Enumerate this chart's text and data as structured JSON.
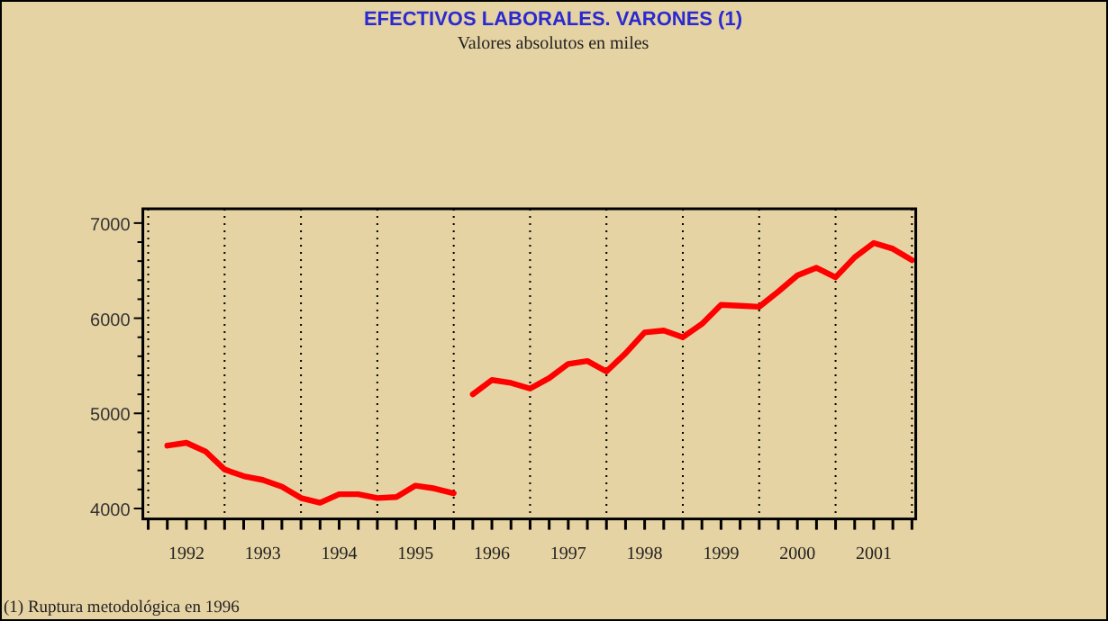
{
  "chart_data": {
    "type": "line",
    "title": "EFECTIVOS LABORALES. VARONES (1)",
    "subtitle": "Valores absolutos en miles",
    "annotations": [
      "(1) Ruptura metodológica en 1996"
    ],
    "xlim": [
      1991.93,
      2002.05
    ],
    "xticks": [
      {
        "value": 1992,
        "label": null
      },
      {
        "value": 1992.25,
        "label": null
      },
      {
        "value": 1992.5,
        "label": "1992"
      },
      {
        "value": 1992.75,
        "label": null
      },
      {
        "value": 1993,
        "label": null
      },
      {
        "value": 1993.25,
        "label": null
      },
      {
        "value": 1993.5,
        "label": "1993"
      },
      {
        "value": 1993.75,
        "label": null
      },
      {
        "value": 1994,
        "label": null
      },
      {
        "value": 1994.25,
        "label": null
      },
      {
        "value": 1994.5,
        "label": "1994"
      },
      {
        "value": 1994.75,
        "label": null
      },
      {
        "value": 1995,
        "label": null
      },
      {
        "value": 1995.25,
        "label": null
      },
      {
        "value": 1995.5,
        "label": "1995"
      },
      {
        "value": 1995.75,
        "label": null
      },
      {
        "value": 1996,
        "label": null
      },
      {
        "value": 1996.25,
        "label": null
      },
      {
        "value": 1996.5,
        "label": "1996"
      },
      {
        "value": 1996.75,
        "label": null
      },
      {
        "value": 1997,
        "label": null
      },
      {
        "value": 1997.25,
        "label": null
      },
      {
        "value": 1997.5,
        "label": "1997"
      },
      {
        "value": 1997.75,
        "label": null
      },
      {
        "value": 1998,
        "label": null
      },
      {
        "value": 1998.25,
        "label": null
      },
      {
        "value": 1998.5,
        "label": "1998"
      },
      {
        "value": 1998.75,
        "label": null
      },
      {
        "value": 1999,
        "label": null
      },
      {
        "value": 1999.25,
        "label": null
      },
      {
        "value": 1999.5,
        "label": "1999"
      },
      {
        "value": 1999.75,
        "label": null
      },
      {
        "value": 2000,
        "label": null
      },
      {
        "value": 2000.25,
        "label": null
      },
      {
        "value": 2000.5,
        "label": "2000"
      },
      {
        "value": 2000.75,
        "label": null
      },
      {
        "value": 2001,
        "label": null
      },
      {
        "value": 2001.25,
        "label": null
      },
      {
        "value": 2001.5,
        "label": "2001"
      },
      {
        "value": 2001.75,
        "label": null
      },
      {
        "value": 2002,
        "label": null
      }
    ],
    "ylim": [
      3890,
      7150
    ],
    "yticks": [
      4000,
      {
        "value": 4200,
        "label": null
      },
      {
        "value": 4400,
        "label": null
      },
      {
        "value": 4600,
        "label": null
      },
      {
        "value": 4800,
        "label": null
      },
      5000,
      {
        "value": 5200,
        "label": null
      },
      {
        "value": 5400,
        "label": null
      },
      {
        "value": 5600,
        "label": null
      },
      {
        "value": 5800,
        "label": null
      },
      6000,
      {
        "value": 6200,
        "label": null
      },
      {
        "value": 6400,
        "label": null
      },
      {
        "value": 6600,
        "label": null
      },
      {
        "value": 6800,
        "label": null
      },
      7000
    ],
    "grid": "x",
    "line_style": "solid",
    "marker": "none",
    "series": [
      {
        "color": "#ff0000",
        "x": [
          1992.25,
          1992.5,
          1992.75,
          1993,
          1993.25,
          1993.5,
          1993.75,
          1994,
          1994.25,
          1994.5,
          1994.75,
          1995,
          1995.25,
          1995.5,
          1995.75,
          1996
        ],
        "values": [
          4660,
          4690,
          4600,
          4410,
          4340,
          4300,
          4230,
          4110,
          4060,
          4150,
          4150,
          4110,
          4120,
          4240,
          4210,
          4160
        ]
      },
      {
        "color": "#ff0000",
        "x": [
          1996.25,
          1996.5,
          1996.75,
          1997,
          1997.25,
          1997.5,
          1997.75,
          1998,
          1998.25,
          1998.5,
          1998.75,
          1999,
          1999.25,
          1999.5,
          1999.75,
          2000,
          2000.25,
          2000.5,
          2000.75,
          2001,
          2001.25,
          2001.5,
          2001.75,
          2002
        ],
        "values": [
          5200,
          5350,
          5320,
          5260,
          5370,
          5520,
          5550,
          5440,
          5630,
          5850,
          5870,
          5800,
          5940,
          6140,
          6130,
          6120,
          6280,
          6450,
          6530,
          6430,
          6640,
          6790,
          6730,
          6610
        ]
      }
    ]
  }
}
